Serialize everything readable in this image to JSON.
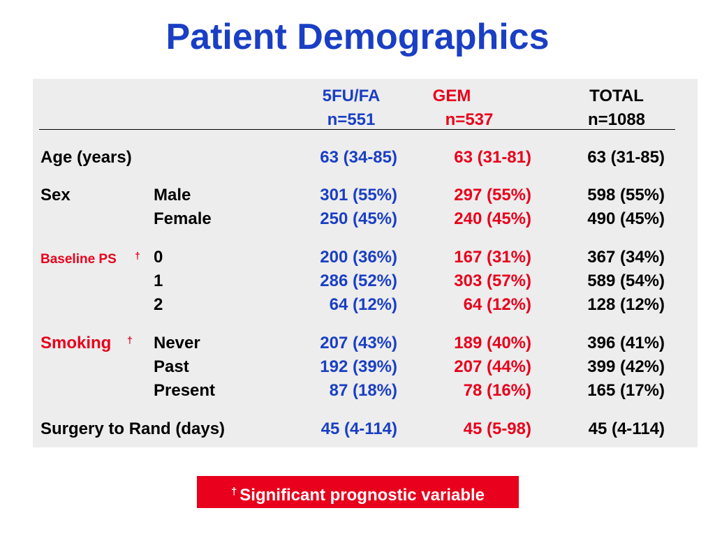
{
  "colors": {
    "title": "#1a3fc4",
    "fu": "#1a3fc4",
    "gem": "#e8001c",
    "total": "#000000",
    "panel": "#ededed",
    "footnote_bg": "#e8001c",
    "footnote_text": "#ffffff",
    "highlight_label": "#e8001c"
  },
  "title": "Patient Demographics",
  "headers": {
    "fu": {
      "name": "5FU/FA",
      "n": "n=551"
    },
    "gem": {
      "name": "GEM",
      "n": "n=537"
    },
    "total": {
      "name": "TOTAL",
      "n": "n=1088"
    }
  },
  "rows": {
    "age": {
      "label": "Age (years)",
      "fu": "63 (34-85)",
      "gem": "63 (31-81)",
      "total": "63 (31-85)"
    },
    "sex": {
      "label": "Sex",
      "male": {
        "sub": "Male",
        "fu": "301 (55%)",
        "gem": "297 (55%)",
        "total": "598 (55%)"
      },
      "female": {
        "sub": "Female",
        "fu": "250 (45%)",
        "gem": "240 (45%)",
        "total": "490 (45%)"
      }
    },
    "ps": {
      "label": "Baseline PS",
      "mark": "†",
      "r0": {
        "sub": "0",
        "fu": "200 (36%)",
        "gem": "167 (31%)",
        "total": "367 (34%)"
      },
      "r1": {
        "sub": "1",
        "fu": "286 (52%)",
        "gem": "303 (57%)",
        "total": "589 (54%)"
      },
      "r2": {
        "sub": "2",
        "fu": "64 (12%)",
        "gem": "64 (12%)",
        "total": "128 (12%)"
      }
    },
    "smoking": {
      "label": "Smoking",
      "mark": "†",
      "never": {
        "sub": "Never",
        "fu": "207 (43%)",
        "gem": "189 (40%)",
        "total": "396 (41%)"
      },
      "past": {
        "sub": "Past",
        "fu": "192 (39%)",
        "gem": "207 (44%)",
        "total": "399 (42%)"
      },
      "present": {
        "sub": "Present",
        "fu": "87 (18%)",
        "gem": "78 (16%)",
        "total": "165 (17%)"
      }
    },
    "surgery": {
      "label": "Surgery to Rand (days)",
      "fu": "45 (4-114)",
      "gem": "45 (5-98)",
      "total": "45 (4-114)"
    }
  },
  "footnote": {
    "mark": "†",
    "text": "Significant prognostic variable"
  }
}
